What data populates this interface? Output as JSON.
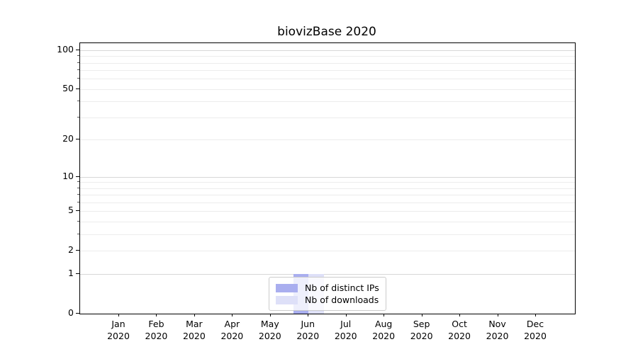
{
  "chart_data": {
    "type": "bar",
    "title": "biovizBase 2020",
    "scale": "log1p",
    "ylim": [
      0,
      113
    ],
    "grid": "horizontal",
    "legend_position": "bottom-center",
    "categories": [
      "Jan",
      "Feb",
      "Mar",
      "Apr",
      "May",
      "Jun",
      "Jul",
      "Aug",
      "Sep",
      "Oct",
      "Nov",
      "Dec"
    ],
    "category_year": "2020",
    "series": [
      {
        "name": "Nb of distinct IPs",
        "color": "#a9aeef",
        "values": [
          0,
          0,
          0,
          0,
          0,
          1,
          0,
          0,
          0,
          0,
          0,
          0
        ]
      },
      {
        "name": "Nb of downloads",
        "color": "#dee0f8",
        "values": [
          0,
          0,
          0,
          0,
          0,
          1,
          0,
          0,
          0,
          0,
          0,
          0
        ]
      }
    ],
    "y_ticks": [
      {
        "label": "100",
        "value": 100
      },
      {
        "label": "50",
        "value": 50
      },
      {
        "label": "20",
        "value": 20
      },
      {
        "label": "10",
        "value": 10
      },
      {
        "label": "5",
        "value": 5
      },
      {
        "label": "2",
        "value": 2
      },
      {
        "label": "1",
        "value": 1
      },
      {
        "label": "0",
        "value": 0
      }
    ],
    "y_major_gridlines": [
      1,
      10,
      100
    ],
    "y_minor_gridlines": [
      2,
      3,
      4,
      5,
      6,
      7,
      8,
      9,
      20,
      30,
      40,
      50,
      60,
      70,
      80,
      90
    ]
  },
  "colors": {
    "major_grid": "#d7d7d7",
    "minor_grid": "#ececec",
    "spine": "#000000"
  }
}
